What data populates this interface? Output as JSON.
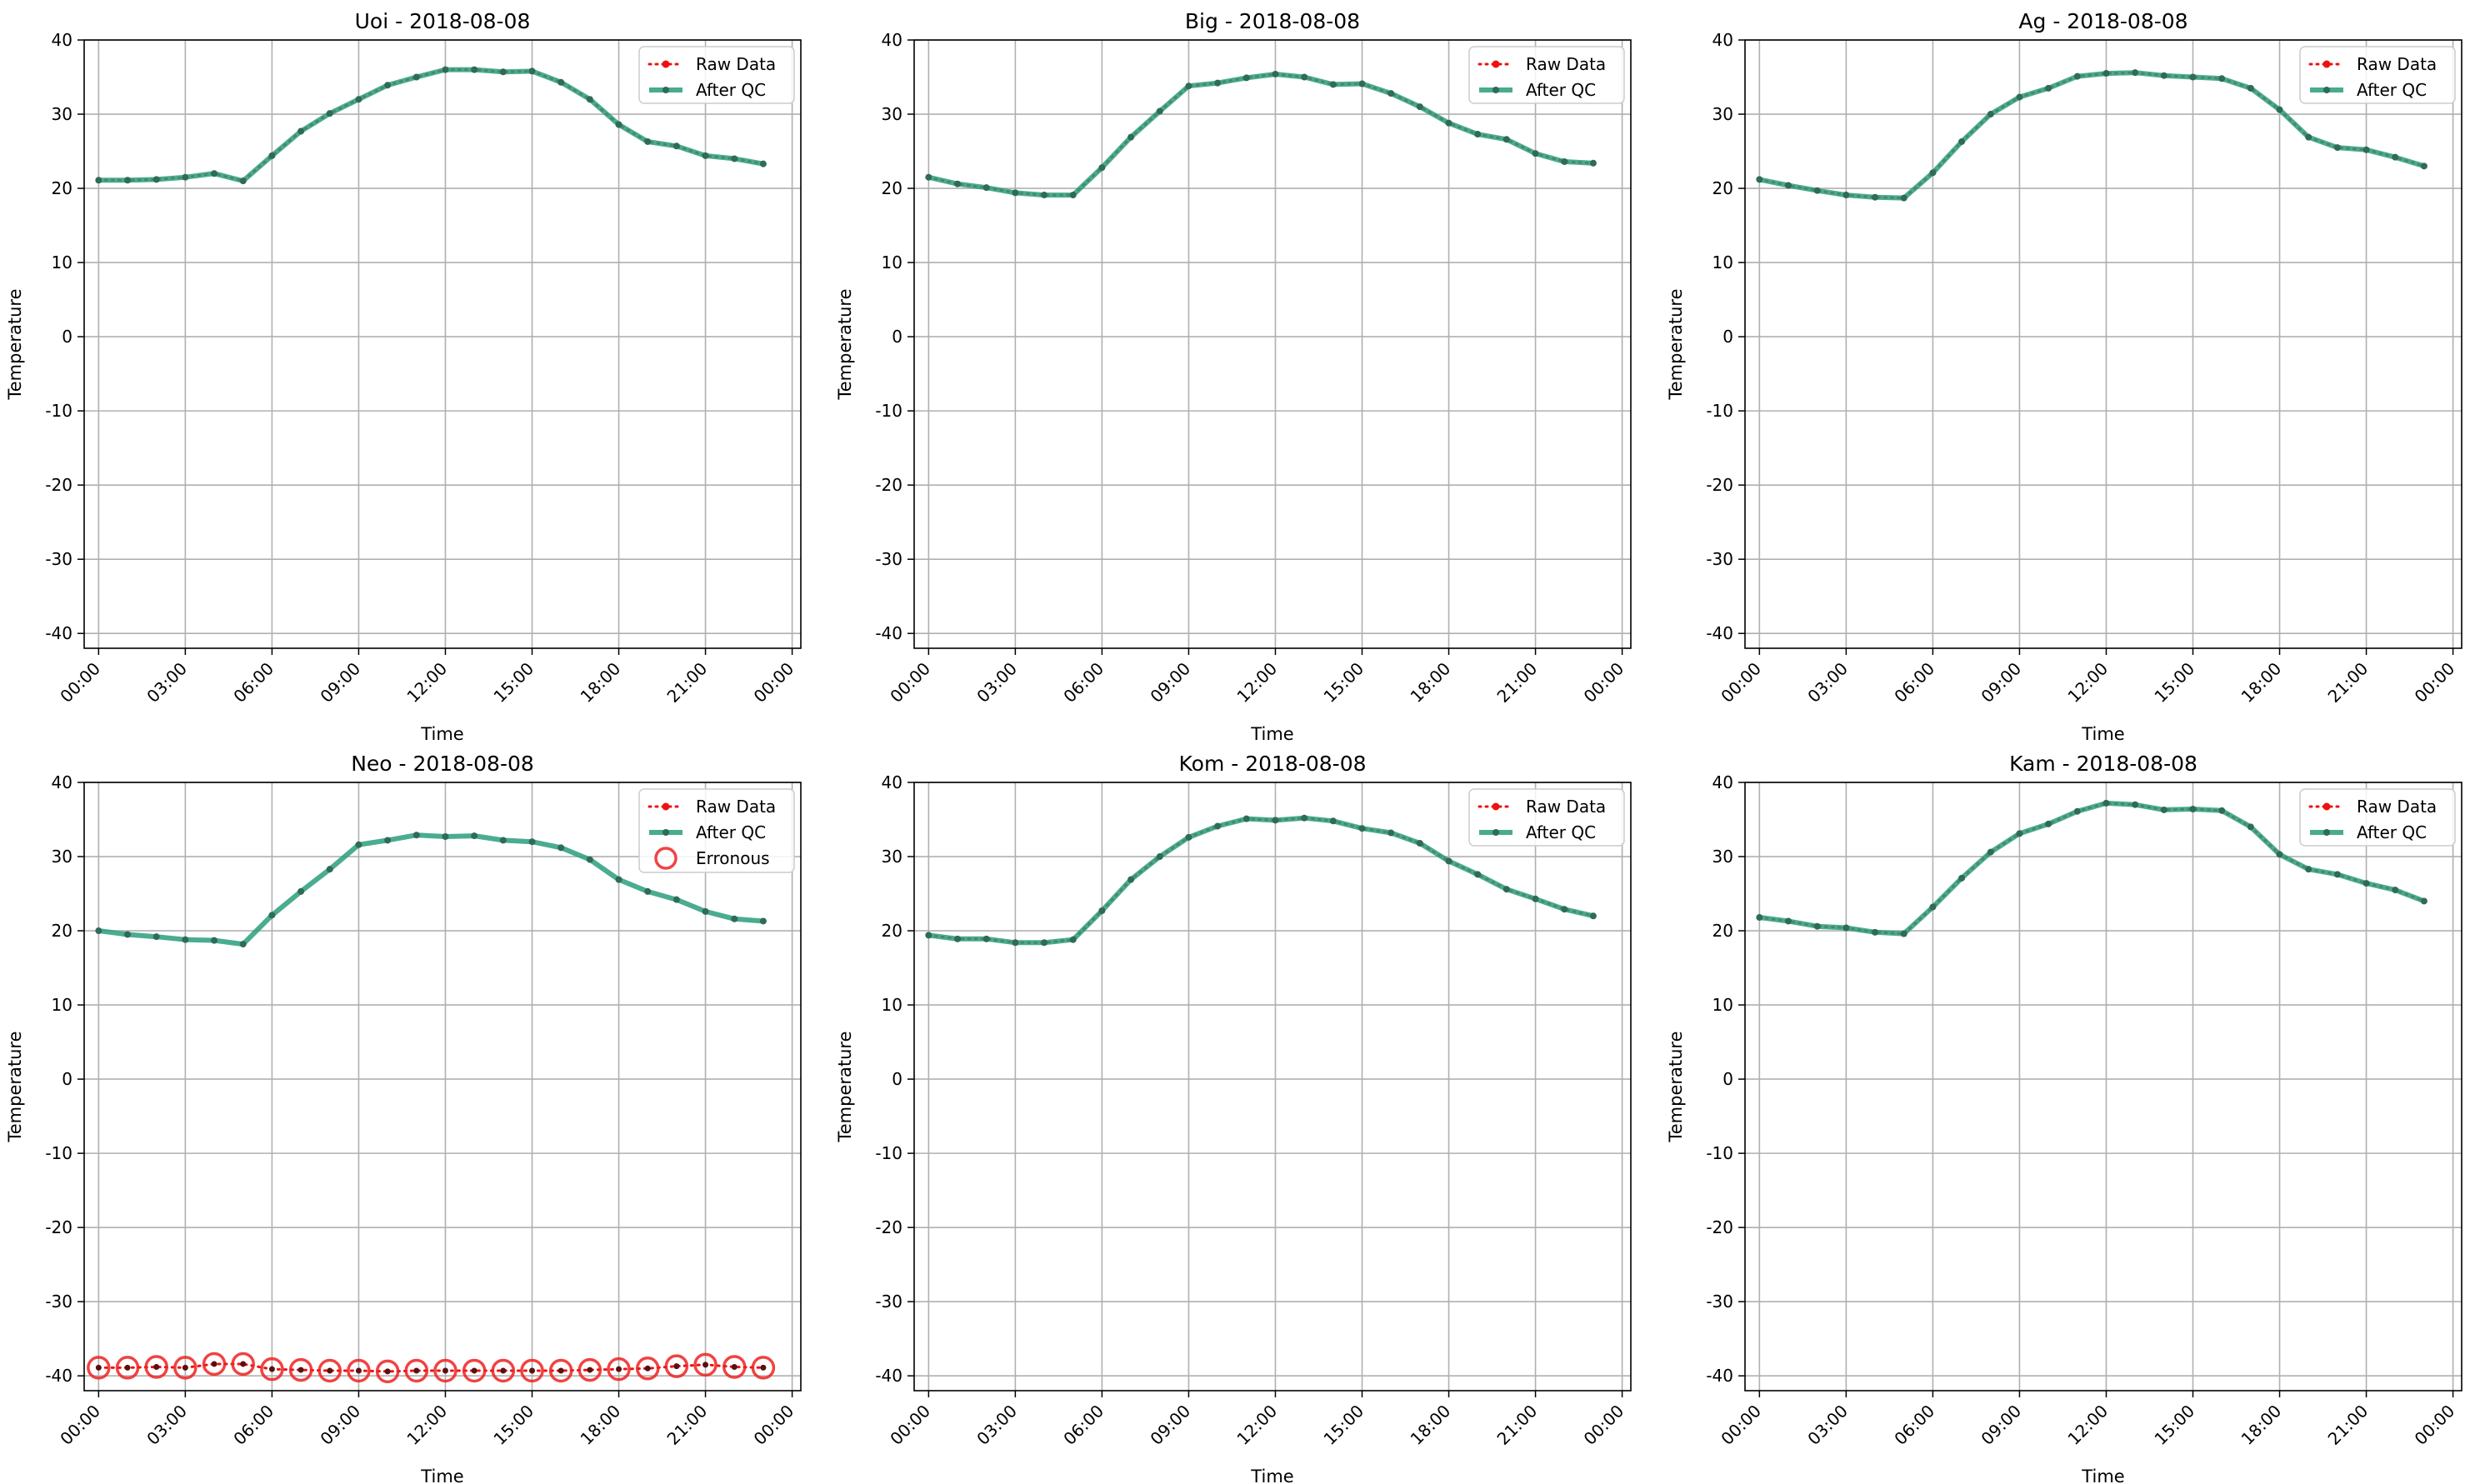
{
  "figure": {
    "ylabel": "Temperature",
    "xlabel": "Time",
    "y_ticks": [
      40,
      30,
      20,
      10,
      0,
      -10,
      -20,
      -30,
      -40
    ],
    "x_ticks": [
      "00:00",
      "03:00",
      "06:00",
      "09:00",
      "12:00",
      "15:00",
      "18:00",
      "21:00",
      "00:00"
    ],
    "legend_raw": "Raw Data",
    "legend_qc": "After QC",
    "legend_err": "Erronous",
    "colors": {
      "raw": "#ee1111",
      "qc": "#2a9d7c",
      "qc_marker": "#2f6b57",
      "erroneous": "#ee2222"
    }
  },
  "chart_data": [
    {
      "type": "line",
      "title": "Uoi - 2018-08-08",
      "xlabel": "Time",
      "ylabel": "Temperature",
      "ylim": [
        -42,
        40
      ],
      "xlim_hours": [
        -0.5,
        24.3
      ],
      "grid": true,
      "legend": "top-right",
      "x_hours": [
        0,
        1,
        2,
        3,
        4,
        5,
        6,
        7,
        8,
        9,
        10,
        11,
        12,
        13,
        14,
        15,
        16,
        17,
        18,
        19,
        20,
        21,
        22,
        23
      ],
      "series": [
        {
          "name": "Raw Data",
          "values": [
            21.1,
            21.1,
            21.2,
            21.5,
            22.0,
            21.0,
            24.4,
            27.7,
            30.1,
            32.0,
            33.9,
            35.0,
            36.0,
            36.0,
            35.7,
            35.8,
            34.3,
            32.0,
            28.6,
            26.3,
            25.7,
            24.4,
            24.0,
            23.3
          ]
        },
        {
          "name": "After QC",
          "values": [
            21.1,
            21.1,
            21.2,
            21.5,
            22.0,
            21.0,
            24.4,
            27.7,
            30.1,
            32.0,
            33.9,
            35.0,
            36.0,
            36.0,
            35.7,
            35.8,
            34.3,
            32.0,
            28.6,
            26.3,
            25.7,
            24.4,
            24.0,
            23.3
          ]
        }
      ]
    },
    {
      "type": "line",
      "title": "Big - 2018-08-08",
      "xlabel": "Time",
      "ylabel": "Temperature",
      "ylim": [
        -42,
        40
      ],
      "xlim_hours": [
        -0.5,
        24.3
      ],
      "grid": true,
      "legend": "top-right",
      "x_hours": [
        0,
        1,
        2,
        3,
        4,
        5,
        6,
        7,
        8,
        9,
        10,
        11,
        12,
        13,
        14,
        15,
        16,
        17,
        18,
        19,
        20,
        21,
        22,
        23
      ],
      "series": [
        {
          "name": "Raw Data",
          "values": [
            21.5,
            20.6,
            20.1,
            19.4,
            19.1,
            19.1,
            22.8,
            26.9,
            30.4,
            33.8,
            34.2,
            34.9,
            35.4,
            35.0,
            34.0,
            34.1,
            32.8,
            31.0,
            28.8,
            27.3,
            26.6,
            24.7,
            23.6,
            23.4
          ]
        },
        {
          "name": "After QC",
          "values": [
            21.5,
            20.6,
            20.1,
            19.4,
            19.1,
            19.1,
            22.8,
            26.9,
            30.4,
            33.8,
            34.2,
            34.9,
            35.4,
            35.0,
            34.0,
            34.1,
            32.8,
            31.0,
            28.8,
            27.3,
            26.6,
            24.7,
            23.6,
            23.4
          ]
        }
      ]
    },
    {
      "type": "line",
      "title": "Ag - 2018-08-08",
      "xlabel": "Time",
      "ylabel": "Temperature",
      "ylim": [
        -42,
        40
      ],
      "xlim_hours": [
        -0.5,
        24.3
      ],
      "grid": true,
      "legend": "top-right",
      "x_hours": [
        0,
        1,
        2,
        3,
        4,
        5,
        6,
        7,
        8,
        9,
        10,
        11,
        12,
        13,
        14,
        15,
        16,
        17,
        18,
        19,
        20,
        21,
        22,
        23
      ],
      "series": [
        {
          "name": "Raw Data",
          "values": [
            21.2,
            20.4,
            19.7,
            19.1,
            18.8,
            18.7,
            22.1,
            26.3,
            30.0,
            32.3,
            33.5,
            35.1,
            35.5,
            35.6,
            35.2,
            35.0,
            34.8,
            33.5,
            30.6,
            26.9,
            25.5,
            25.2,
            24.2,
            23.0
          ]
        },
        {
          "name": "After QC",
          "values": [
            21.2,
            20.4,
            19.7,
            19.1,
            18.8,
            18.7,
            22.1,
            26.3,
            30.0,
            32.3,
            33.5,
            35.1,
            35.5,
            35.6,
            35.2,
            35.0,
            34.8,
            33.5,
            30.6,
            26.9,
            25.5,
            25.2,
            24.2,
            23.0
          ]
        }
      ]
    },
    {
      "type": "line",
      "title": "Neo - 2018-08-08",
      "xlabel": "Time",
      "ylabel": "Temperature",
      "ylim": [
        -42,
        40
      ],
      "xlim_hours": [
        -0.5,
        24.3
      ],
      "grid": true,
      "legend": "top-right",
      "x_hours": [
        0,
        1,
        2,
        3,
        4,
        5,
        6,
        7,
        8,
        9,
        10,
        11,
        12,
        13,
        14,
        15,
        16,
        17,
        18,
        19,
        20,
        21,
        22,
        23
      ],
      "series": [
        {
          "name": "Raw Data",
          "values": [
            -38.9,
            -38.9,
            -38.8,
            -38.9,
            -38.4,
            -38.4,
            -39.1,
            -39.2,
            -39.3,
            -39.3,
            -39.4,
            -39.3,
            -39.3,
            -39.3,
            -39.3,
            -39.3,
            -39.3,
            -39.2,
            -39.1,
            -39.0,
            -38.7,
            -38.5,
            -38.8,
            -38.9
          ]
        },
        {
          "name": "After QC",
          "values": [
            20.0,
            19.5,
            19.2,
            18.8,
            18.7,
            18.2,
            22.1,
            25.3,
            28.3,
            31.6,
            32.2,
            32.9,
            32.7,
            32.8,
            32.2,
            32.0,
            31.2,
            29.6,
            26.9,
            25.3,
            24.2,
            22.6,
            21.6,
            21.3
          ]
        },
        {
          "name": "Erronous",
          "values": [
            -38.9,
            -38.9,
            -38.8,
            -38.9,
            -38.4,
            -38.4,
            -39.1,
            -39.2,
            -39.3,
            -39.3,
            -39.4,
            -39.3,
            -39.3,
            -39.3,
            -39.3,
            -39.3,
            -39.3,
            -39.2,
            -39.1,
            -39.0,
            -38.7,
            -38.5,
            -38.8,
            -38.9
          ]
        }
      ]
    },
    {
      "type": "line",
      "title": "Kom - 2018-08-08",
      "xlabel": "Time",
      "ylabel": "Temperature",
      "ylim": [
        -42,
        40
      ],
      "xlim_hours": [
        -0.5,
        24.3
      ],
      "grid": true,
      "legend": "top-right",
      "x_hours": [
        0,
        1,
        2,
        3,
        4,
        5,
        6,
        7,
        8,
        9,
        10,
        11,
        12,
        13,
        14,
        15,
        16,
        17,
        18,
        19,
        20,
        21,
        22,
        23
      ],
      "series": [
        {
          "name": "Raw Data",
          "values": [
            19.4,
            18.9,
            18.9,
            18.4,
            18.4,
            18.8,
            22.7,
            26.9,
            30.0,
            32.6,
            34.1,
            35.1,
            34.9,
            35.2,
            34.8,
            33.8,
            33.2,
            31.8,
            29.4,
            27.6,
            25.6,
            24.3,
            22.9,
            22.0
          ]
        },
        {
          "name": "After QC",
          "values": [
            19.4,
            18.9,
            18.9,
            18.4,
            18.4,
            18.8,
            22.7,
            26.9,
            30.0,
            32.6,
            34.1,
            35.1,
            34.9,
            35.2,
            34.8,
            33.8,
            33.2,
            31.8,
            29.4,
            27.6,
            25.6,
            24.3,
            22.9,
            22.0
          ]
        }
      ]
    },
    {
      "type": "line",
      "title": "Kam - 2018-08-08",
      "xlabel": "Time",
      "ylabel": "Temperature",
      "ylim": [
        -42,
        40
      ],
      "xlim_hours": [
        -0.5,
        24.3
      ],
      "grid": true,
      "legend": "top-right",
      "x_hours": [
        0,
        1,
        2,
        3,
        4,
        5,
        6,
        7,
        8,
        9,
        10,
        11,
        12,
        13,
        14,
        15,
        16,
        17,
        18,
        19,
        20,
        21,
        22,
        23
      ],
      "series": [
        {
          "name": "Raw Data",
          "values": [
            21.8,
            21.3,
            20.6,
            20.4,
            19.8,
            19.6,
            23.2,
            27.1,
            30.6,
            33.1,
            34.4,
            36.1,
            37.2,
            37.0,
            36.3,
            36.4,
            36.2,
            34.0,
            30.3,
            28.3,
            27.6,
            26.4,
            25.5,
            24.0
          ]
        },
        {
          "name": "After QC",
          "values": [
            21.8,
            21.3,
            20.6,
            20.4,
            19.8,
            19.6,
            23.2,
            27.1,
            30.6,
            33.1,
            34.4,
            36.1,
            37.2,
            37.0,
            36.3,
            36.4,
            36.2,
            34.0,
            30.3,
            28.3,
            27.6,
            26.4,
            25.5,
            24.0
          ]
        }
      ]
    }
  ]
}
